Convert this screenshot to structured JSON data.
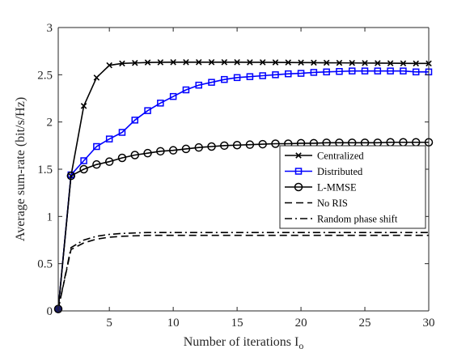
{
  "chart_data": {
    "type": "line",
    "xlabel": "Number of iterations I",
    "xlabel_subscript": "o",
    "ylabel": "Average sum-rate (bit/s/Hz)",
    "xlim": [
      1,
      30
    ],
    "ylim": [
      0,
      3
    ],
    "xticks": [
      5,
      10,
      15,
      20,
      25,
      30
    ],
    "yticks": [
      0,
      0.5,
      1,
      1.5,
      2,
      2.5,
      3
    ],
    "grid": false,
    "legend_position": "right-center",
    "x": [
      1,
      2,
      3,
      4,
      5,
      6,
      7,
      8,
      9,
      10,
      11,
      12,
      13,
      14,
      15,
      16,
      17,
      18,
      19,
      20,
      21,
      22,
      23,
      24,
      25,
      26,
      27,
      28,
      29,
      30
    ],
    "series": [
      {
        "name": "Centralized",
        "color": "#000000",
        "marker": "x",
        "line_style": "solid",
        "values": [
          0.02,
          1.43,
          2.17,
          2.47,
          2.6,
          2.62,
          2.625,
          2.63,
          2.632,
          2.633,
          2.633,
          2.633,
          2.633,
          2.633,
          2.633,
          2.632,
          2.632,
          2.631,
          2.63,
          2.629,
          2.628,
          2.627,
          2.626,
          2.625,
          2.624,
          2.623,
          2.622,
          2.621,
          2.62,
          2.62
        ]
      },
      {
        "name": "Distributed",
        "color": "#0000ff",
        "marker": "square",
        "line_style": "solid",
        "values": [
          0.02,
          1.44,
          1.59,
          1.74,
          1.82,
          1.89,
          2.02,
          2.12,
          2.2,
          2.27,
          2.34,
          2.39,
          2.42,
          2.45,
          2.47,
          2.48,
          2.49,
          2.5,
          2.51,
          2.515,
          2.525,
          2.53,
          2.535,
          2.54,
          2.54,
          2.54,
          2.54,
          2.54,
          2.53,
          2.53
        ]
      },
      {
        "name": "L-MMSE",
        "color": "#000000",
        "marker": "circle",
        "line_style": "solid",
        "values": [
          0.02,
          1.43,
          1.5,
          1.55,
          1.58,
          1.62,
          1.65,
          1.67,
          1.69,
          1.7,
          1.715,
          1.73,
          1.74,
          1.75,
          1.755,
          1.76,
          1.765,
          1.77,
          1.77,
          1.775,
          1.775,
          1.78,
          1.78,
          1.78,
          1.78,
          1.78,
          1.785,
          1.785,
          1.785,
          1.785
        ]
      },
      {
        "name": "No RIS",
        "color": "#000000",
        "marker": "none",
        "line_style": "dashed",
        "values": [
          0.02,
          0.65,
          0.72,
          0.76,
          0.78,
          0.79,
          0.795,
          0.8,
          0.8,
          0.8,
          0.8,
          0.8,
          0.8,
          0.8,
          0.8,
          0.8,
          0.8,
          0.8,
          0.8,
          0.8,
          0.8,
          0.8,
          0.8,
          0.8,
          0.8,
          0.8,
          0.8,
          0.8,
          0.8,
          0.8
        ]
      },
      {
        "name": "Random phase shift",
        "color": "#000000",
        "marker": "none",
        "line_style": "dashdot",
        "values": [
          0.02,
          0.67,
          0.75,
          0.79,
          0.81,
          0.82,
          0.825,
          0.83,
          0.83,
          0.83,
          0.83,
          0.83,
          0.83,
          0.83,
          0.83,
          0.83,
          0.83,
          0.83,
          0.83,
          0.83,
          0.83,
          0.83,
          0.83,
          0.83,
          0.83,
          0.83,
          0.83,
          0.83,
          0.83,
          0.83
        ]
      }
    ]
  }
}
